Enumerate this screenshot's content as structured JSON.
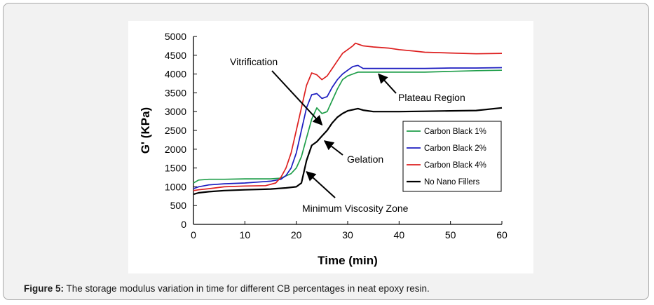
{
  "caption": {
    "label": "Figure 5:",
    "text": " The storage modulus variation in time for different CB percentages in neat epoxy resin."
  },
  "colors": {
    "frame_bg": "#f2f2f2",
    "green": "#1f9e4a",
    "blue": "#1c1cc0",
    "red": "#dd1f1f",
    "black": "#000000"
  },
  "chart_data": {
    "type": "line",
    "xlabel": "Time (min)",
    "ylabel": "G' (KPa)",
    "xlim": [
      0,
      60
    ],
    "ylim": [
      0,
      5000
    ],
    "x_ticks": [
      0,
      10,
      20,
      30,
      40,
      50,
      60
    ],
    "y_ticks": [
      0,
      500,
      1000,
      1500,
      2000,
      2500,
      3000,
      3500,
      4000,
      4500,
      5000
    ],
    "grid": false,
    "legend_position": "right",
    "series": [
      {
        "name": "Carbon Black 1%",
        "color": "#1f9e4a",
        "x": [
          0,
          1,
          3,
          6,
          10,
          15,
          17,
          19,
          20,
          21,
          22,
          23,
          24,
          25,
          26,
          27,
          28,
          29,
          30,
          32,
          34,
          40,
          45,
          50,
          55,
          60
        ],
        "y": [
          1100,
          1180,
          1200,
          1200,
          1210,
          1210,
          1230,
          1350,
          1500,
          1800,
          2300,
          2800,
          3100,
          2950,
          3000,
          3300,
          3600,
          3850,
          3950,
          4050,
          4050,
          4050,
          4050,
          4070,
          4090,
          4100
        ]
      },
      {
        "name": "Carbon Black 2%",
        "color": "#1c1cc0",
        "x": [
          0,
          1,
          3,
          6,
          10,
          15,
          17,
          18,
          19,
          20,
          21,
          22,
          23,
          24,
          25,
          26,
          27,
          28,
          29,
          30,
          31,
          32,
          33,
          35,
          40,
          45,
          50,
          55,
          60
        ],
        "y": [
          950,
          1000,
          1050,
          1080,
          1100,
          1150,
          1200,
          1300,
          1500,
          1900,
          2500,
          3100,
          3450,
          3480,
          3350,
          3400,
          3650,
          3850,
          4000,
          4100,
          4200,
          4230,
          4150,
          4150,
          4150,
          4150,
          4160,
          4160,
          4170
        ]
      },
      {
        "name": "Carbon Black 4%",
        "color": "#dd1f1f",
        "x": [
          0,
          1,
          3,
          6,
          10,
          14,
          16,
          17,
          18,
          19,
          20,
          21,
          22,
          23,
          24,
          25,
          26,
          27,
          28,
          29,
          30,
          31,
          31.5,
          33,
          35,
          38,
          40,
          43,
          45,
          50,
          55,
          60
        ],
        "y": [
          900,
          920,
          950,
          1000,
          1020,
          1030,
          1100,
          1250,
          1500,
          1900,
          2500,
          3100,
          3700,
          4030,
          3980,
          3850,
          3950,
          4150,
          4350,
          4550,
          4650,
          4750,
          4820,
          4750,
          4720,
          4690,
          4650,
          4610,
          4580,
          4560,
          4540,
          4550
        ]
      },
      {
        "name": "No Nano Fillers",
        "color": "#000000",
        "x": [
          0,
          1,
          3,
          6,
          10,
          15,
          18,
          20,
          21,
          22,
          23,
          24,
          25,
          26,
          27,
          28,
          29,
          30,
          31,
          32,
          33,
          35,
          40,
          45,
          50,
          55,
          60
        ],
        "y": [
          800,
          840,
          870,
          900,
          920,
          940,
          970,
          1000,
          1100,
          1700,
          2100,
          2200,
          2350,
          2500,
          2700,
          2850,
          2950,
          3020,
          3050,
          3080,
          3040,
          3000,
          3000,
          3010,
          3020,
          3030,
          3100
        ]
      }
    ],
    "annotations": [
      {
        "text": "Vitrification",
        "arrow_to": [
          25,
          2650
        ]
      },
      {
        "text": "Plateau Region",
        "arrow_to": [
          36,
          4000
        ]
      },
      {
        "text": "Gelation",
        "arrow_to": [
          25.5,
          2220
        ]
      },
      {
        "text": "Minimum Viscosity Zone",
        "arrow_to": [
          22,
          1400
        ]
      }
    ]
  }
}
